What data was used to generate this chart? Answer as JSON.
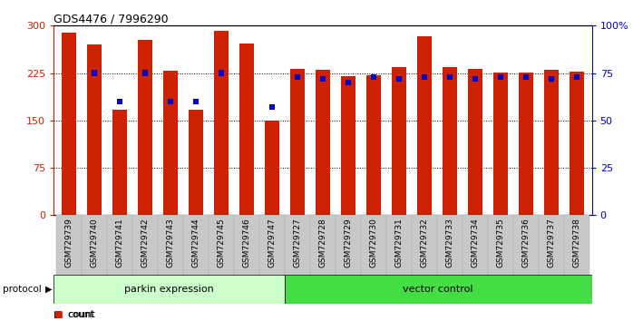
{
  "title": "GDS4476 / 7996290",
  "samples": [
    "GSM729739",
    "GSM729740",
    "GSM729741",
    "GSM729742",
    "GSM729743",
    "GSM729744",
    "GSM729745",
    "GSM729746",
    "GSM729747",
    "GSM729727",
    "GSM729728",
    "GSM729729",
    "GSM729730",
    "GSM729731",
    "GSM729732",
    "GSM729733",
    "GSM729734",
    "GSM729735",
    "GSM729736",
    "GSM729737",
    "GSM729738"
  ],
  "counts": [
    289,
    270,
    167,
    278,
    229,
    167,
    292,
    272,
    150,
    232,
    230,
    220,
    222,
    235,
    283,
    234,
    232,
    226,
    226,
    230,
    227
  ],
  "percentiles": [
    null,
    75,
    60,
    75,
    60,
    60,
    75,
    null,
    57,
    73,
    72,
    70,
    73,
    72,
    73,
    73,
    72,
    73,
    73,
    72,
    73
  ],
  "parkin_count": 9,
  "vector_count": 12,
  "bar_color": "#cc2200",
  "pct_color": "#0000cc",
  "parkin_bg": "#ccffcc",
  "vector_bg": "#44dd44",
  "ymax": 300,
  "yticks": [
    0,
    75,
    150,
    225,
    300
  ],
  "ylabels": [
    "0",
    "75",
    "150",
    "225",
    "300"
  ],
  "pct_ticks": [
    0,
    25,
    50,
    75,
    100
  ],
  "pct_labels": [
    "0",
    "25",
    "50",
    "75",
    "100%"
  ],
  "grid_values": [
    75,
    150,
    225
  ],
  "bar_color_hex": "#cc2200",
  "right_axis_color": "#0000cc",
  "left_axis_color": "#cc2200",
  "xtick_bg": "#c8c8c8"
}
